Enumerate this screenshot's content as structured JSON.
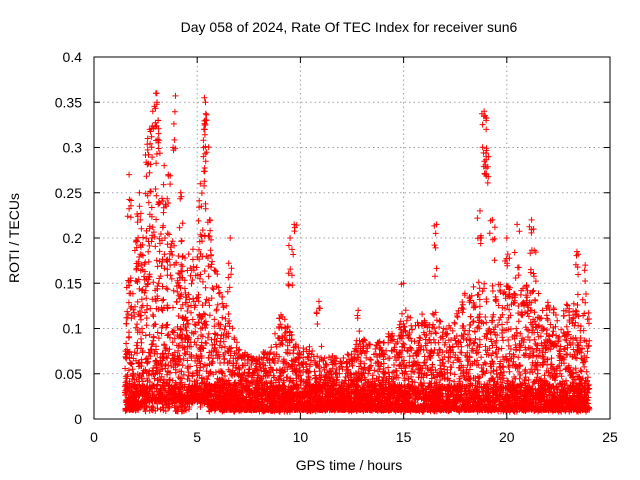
{
  "chart_data": {
    "type": "scatter",
    "title": "Day 058 of 2024, Rate Of TEC Index for receiver sun6",
    "xlabel": "GPS time / hours",
    "ylabel": "ROTI / TECUs",
    "xlim": [
      0,
      25
    ],
    "ylim": [
      0,
      0.4
    ],
    "grid": true,
    "x_ticks": [
      "0",
      "5",
      "10",
      "15",
      "20",
      "25"
    ],
    "y_ticks": [
      "0",
      "0.05",
      "0.1",
      "0.15",
      "0.2",
      "0.25",
      "0.3",
      "0.35",
      "0.4"
    ],
    "marker": "+",
    "color": "#ff0000",
    "data_x_range": [
      1.5,
      24.0
    ],
    "envelope": {
      "hours": [
        1.5,
        2.0,
        2.5,
        3.0,
        3.5,
        4.0,
        4.5,
        5.0,
        5.5,
        6.0,
        6.5,
        7.0,
        7.5,
        8.0,
        8.5,
        9.0,
        9.5,
        10.0,
        10.5,
        11.0,
        11.5,
        12.0,
        12.5,
        13.0,
        13.5,
        14.0,
        14.5,
        15.0,
        15.5,
        16.0,
        16.5,
        17.0,
        17.5,
        18.0,
        18.5,
        19.0,
        19.5,
        20.0,
        20.5,
        21.0,
        21.5,
        22.0,
        22.5,
        23.0,
        23.5,
        24.0
      ],
      "typical_max_roti": [
        0.15,
        0.2,
        0.25,
        0.27,
        0.22,
        0.2,
        0.18,
        0.2,
        0.22,
        0.16,
        0.12,
        0.08,
        0.07,
        0.07,
        0.08,
        0.12,
        0.1,
        0.08,
        0.08,
        0.07,
        0.07,
        0.07,
        0.08,
        0.09,
        0.08,
        0.09,
        0.1,
        0.12,
        0.11,
        0.12,
        0.12,
        0.1,
        0.12,
        0.14,
        0.15,
        0.16,
        0.15,
        0.15,
        0.14,
        0.15,
        0.14,
        0.13,
        0.12,
        0.13,
        0.13,
        0.12
      ],
      "typical_min_roti": [
        0.01,
        0.01,
        0.02,
        0.02,
        0.02,
        0.02,
        0.02,
        0.02,
        0.02,
        0.01,
        0.01,
        0.01,
        0.01,
        0.01,
        0.01,
        0.01,
        0.01,
        0.01,
        0.01,
        0.01,
        0.01,
        0.01,
        0.01,
        0.01,
        0.01,
        0.01,
        0.01,
        0.01,
        0.01,
        0.01,
        0.01,
        0.01,
        0.01,
        0.01,
        0.01,
        0.01,
        0.01,
        0.01,
        0.01,
        0.01,
        0.01,
        0.01,
        0.01,
        0.01,
        0.01,
        0.01
      ]
    },
    "spikes": [
      {
        "x": 1.7,
        "y": 0.27
      },
      {
        "x": 2.2,
        "y": 0.25
      },
      {
        "x": 2.6,
        "y": 0.31
      },
      {
        "x": 2.7,
        "y": 0.32
      },
      {
        "x": 2.85,
        "y": 0.34
      },
      {
        "x": 3.0,
        "y": 0.36
      },
      {
        "x": 3.05,
        "y": 0.35
      },
      {
        "x": 3.1,
        "y": 0.33
      },
      {
        "x": 3.4,
        "y": 0.28
      },
      {
        "x": 3.6,
        "y": 0.27
      },
      {
        "x": 3.95,
        "y": 0.357
      },
      {
        "x": 4.2,
        "y": 0.25
      },
      {
        "x": 5.15,
        "y": 0.26
      },
      {
        "x": 5.3,
        "y": 0.29
      },
      {
        "x": 5.35,
        "y": 0.355
      },
      {
        "x": 5.4,
        "y": 0.35
      },
      {
        "x": 5.45,
        "y": 0.33
      },
      {
        "x": 5.6,
        "y": 0.22
      },
      {
        "x": 6.6,
        "y": 0.2
      },
      {
        "x": 9.5,
        "y": 0.2
      },
      {
        "x": 9.7,
        "y": 0.215
      },
      {
        "x": 10.9,
        "y": 0.13
      },
      {
        "x": 12.8,
        "y": 0.12
      },
      {
        "x": 15.0,
        "y": 0.15
      },
      {
        "x": 16.6,
        "y": 0.215
      },
      {
        "x": 18.7,
        "y": 0.23
      },
      {
        "x": 18.9,
        "y": 0.34
      },
      {
        "x": 18.95,
        "y": 0.335
      },
      {
        "x": 19.0,
        "y": 0.32
      },
      {
        "x": 19.0,
        "y": 0.29
      },
      {
        "x": 19.3,
        "y": 0.22
      },
      {
        "x": 20.0,
        "y": 0.2
      },
      {
        "x": 20.5,
        "y": 0.215
      },
      {
        "x": 21.2,
        "y": 0.22
      },
      {
        "x": 21.3,
        "y": 0.21
      },
      {
        "x": 23.4,
        "y": 0.185
      },
      {
        "x": 23.8,
        "y": 0.17
      }
    ]
  }
}
